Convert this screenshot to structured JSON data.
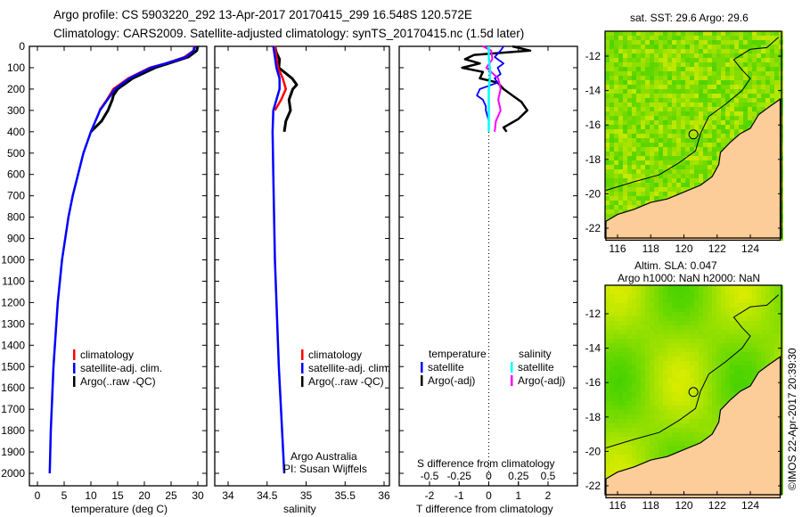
{
  "title_line1": "Argo profile: CS 5903220_292 13-Apr-2017 20170415_299 16.548S 120.572E",
  "title_line2": "Climatology: CARS2009. Satellite-adjusted climatology: synTS_20170415.nc (1.5d later)",
  "credit": "©IMOS 22-Apr-2017 20:39:30",
  "colors": {
    "climatology": "#ff0000",
    "satellite": "#0000ff",
    "argo": "#000000",
    "sal_satellite": "#00ffff",
    "sal_argo": "#ff00ff",
    "land": "#fccc99"
  },
  "chart_data": [
    {
      "type": "line",
      "name": "temperature",
      "xlabel": "temperature (deg C)",
      "xlim": [
        -1.5,
        31.5
      ],
      "xticks": [
        0,
        5,
        10,
        15,
        20,
        25,
        30
      ],
      "ylim": [
        0,
        2050
      ],
      "yticks": [
        0,
        100,
        200,
        300,
        400,
        500,
        600,
        700,
        800,
        900,
        1000,
        1100,
        1200,
        1300,
        1400,
        1500,
        1600,
        1700,
        1800,
        1900,
        2000
      ],
      "legend": [
        "climatology",
        "satellite-adj. clim.",
        "Argo(..raw -QC)"
      ],
      "series": [
        {
          "name": "climatology",
          "depth": [
            0,
            20,
            50,
            80,
            100,
            150,
            200,
            250,
            300
          ],
          "values": [
            29.3,
            29.2,
            27.5,
            24,
            21,
            17,
            14.2,
            13,
            11.6
          ]
        },
        {
          "name": "satellite-adj. clim.",
          "depth": [
            0,
            20,
            50,
            80,
            100,
            150,
            200,
            250,
            300,
            400,
            500,
            600,
            700,
            800,
            1000,
            1200,
            1500,
            1800,
            2000
          ],
          "values": [
            29.5,
            29.2,
            27.8,
            24,
            21.2,
            17.2,
            14.5,
            13.1,
            11.7,
            10,
            8.6,
            7.6,
            6.6,
            5.8,
            4.6,
            3.8,
            3,
            2.5,
            2.3
          ]
        },
        {
          "name": "Argo(..raw -QC)",
          "depth": [
            0,
            20,
            50,
            80,
            100,
            150,
            200,
            230,
            250,
            300,
            350,
            400
          ],
          "values": [
            30,
            29.8,
            28.2,
            24.5,
            22,
            17.8,
            15,
            14.2,
            14,
            13.2,
            12,
            10
          ]
        }
      ]
    },
    {
      "type": "line",
      "name": "salinity",
      "xlabel": "salinity",
      "xlim": [
        33.83,
        36.08
      ],
      "xticks": [
        34,
        34.5,
        35,
        35.5,
        36
      ],
      "ylim": [
        0,
        2050
      ],
      "legend": [
        "climatology",
        "satellite-adj. clim.",
        "Argo(..raw -QC)"
      ],
      "annotation": [
        "Argo Australia",
        "PI: Susan Wijffels"
      ],
      "series": [
        {
          "name": "climatology",
          "depth": [
            0,
            50,
            100,
            150,
            200,
            250,
            300
          ],
          "values": [
            34.6,
            34.62,
            34.64,
            34.7,
            34.74,
            34.68,
            34.6
          ]
        },
        {
          "name": "satellite-adj. clim.",
          "depth": [
            0,
            50,
            100,
            150,
            200,
            250,
            300,
            400,
            600,
            1000,
            1500,
            2000
          ],
          "values": [
            34.58,
            34.6,
            34.62,
            34.66,
            34.66,
            34.62,
            34.58,
            34.57,
            34.58,
            34.6,
            34.65,
            34.72
          ]
        },
        {
          "name": "Argo(..raw -QC)",
          "depth": [
            0,
            30,
            60,
            100,
            150,
            180,
            200,
            250,
            300,
            350,
            400
          ],
          "values": [
            34.6,
            34.62,
            34.66,
            34.65,
            34.82,
            34.88,
            34.83,
            34.78,
            34.8,
            34.74,
            34.72
          ]
        }
      ]
    },
    {
      "type": "line",
      "name": "difference",
      "xlabel": "T difference from climatology",
      "xlabel_top": "S difference from climatology",
      "xlim": [
        -3,
        3
      ],
      "xticks": [
        -2,
        -1,
        0,
        1,
        2
      ],
      "xticks_top": [
        -0.5,
        -0.25,
        0,
        0.25,
        0.5
      ],
      "xtick_labels_top": [
        "-0.5",
        "-0.25",
        "0",
        "0.25",
        "0.5"
      ],
      "legend_temperature": [
        "temperature",
        "satellite",
        "Argo(-adj)"
      ],
      "legend_salinity": [
        "salinity",
        "satellite",
        "Argo(-adj)"
      ],
      "series": [
        {
          "name": "T satellite",
          "depth": [
            0,
            20,
            50,
            80,
            100,
            130,
            150,
            170,
            200,
            230,
            250,
            280,
            300,
            350,
            390
          ],
          "values": [
            0.5,
            0.4,
            0.2,
            0.5,
            0.3,
            0.4,
            0.2,
            0.3,
            -0.3,
            -0.4,
            -0.2,
            -0.1,
            -0.1,
            0,
            0
          ]
        },
        {
          "name": "T Argo(-adj)",
          "depth": [
            0,
            20,
            40,
            60,
            80,
            100,
            120,
            150,
            170,
            200,
            230,
            260,
            300,
            340,
            380,
            400
          ],
          "values": [
            0.8,
            1.4,
            -0.5,
            -0.8,
            -0.3,
            -0.9,
            -0.2,
            -0.3,
            0.3,
            0.5,
            0.8,
            1.1,
            1.3,
            1.0,
            0.5,
            0.6
          ]
        },
        {
          "name": "S satellite",
          "depth": [
            0,
            50,
            100,
            150,
            200,
            300,
            400
          ],
          "values": [
            0,
            0,
            0.01,
            0.01,
            0,
            0,
            0
          ]
        },
        {
          "name": "S Argo(-adj)",
          "depth": [
            0,
            20,
            60,
            100,
            150,
            200,
            250,
            300,
            350,
            400
          ],
          "values": [
            -0.05,
            0.02,
            0.03,
            -0.02,
            0.08,
            0.1,
            0.08,
            0.1,
            0.06,
            0.05
          ]
        }
      ]
    },
    {
      "type": "heatmap",
      "name": "sst-map",
      "title": "sat. SST: 29.6 Argo: 29.6",
      "xlim": [
        115.3,
        125.8
      ],
      "ylim": [
        -22.6,
        -10.5
      ],
      "xticks": [
        116,
        118,
        120,
        122,
        124
      ],
      "yticks": [
        -12,
        -14,
        -16,
        -18,
        -20,
        -22
      ],
      "marker": [
        120.572,
        -16.548
      ]
    },
    {
      "type": "heatmap",
      "name": "sla-map",
      "title_line1": "Altim. SLA: 0.047",
      "title_line2": "Argo h1000: NaN h2000: NaN",
      "xlim": [
        115.3,
        125.8
      ],
      "ylim": [
        -22.6,
        -10.5
      ],
      "xticks": [
        116,
        118,
        120,
        122,
        124
      ],
      "yticks": [
        -12,
        -14,
        -16,
        -18,
        -20,
        -22
      ],
      "marker": [
        120.572,
        -16.548
      ]
    }
  ]
}
